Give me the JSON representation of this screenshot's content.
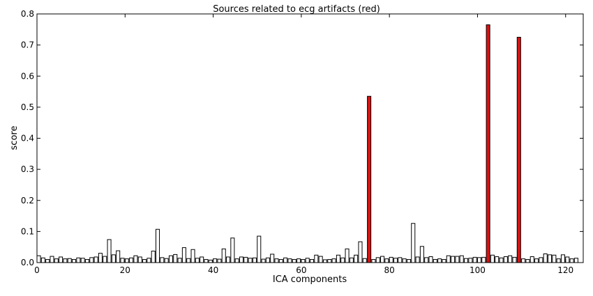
{
  "chart_data": {
    "type": "bar",
    "title": "Sources related to ecg artifacts (red)",
    "xlabel": "ICA components",
    "ylabel": "score",
    "xlim": [
      0,
      124
    ],
    "ylim": [
      0,
      0.8
    ],
    "xticks": [
      0,
      20,
      40,
      60,
      80,
      100,
      120
    ],
    "yticks": [
      0.0,
      0.1,
      0.2,
      0.3,
      0.4,
      0.5,
      0.6,
      0.7,
      0.8
    ],
    "grid": false,
    "colors": {
      "normal": "#ffffff",
      "highlight": "#dd1111",
      "edge": "#000000"
    },
    "highlighted_indices": [
      75,
      102,
      109
    ],
    "values": [
      0.022,
      0.015,
      0.01,
      0.02,
      0.012,
      0.018,
      0.012,
      0.013,
      0.01,
      0.015,
      0.014,
      0.01,
      0.016,
      0.018,
      0.03,
      0.02,
      0.074,
      0.025,
      0.038,
      0.014,
      0.012,
      0.015,
      0.022,
      0.018,
      0.01,
      0.014,
      0.037,
      0.107,
      0.016,
      0.013,
      0.022,
      0.026,
      0.014,
      0.048,
      0.013,
      0.042,
      0.014,
      0.018,
      0.01,
      0.008,
      0.012,
      0.011,
      0.044,
      0.018,
      0.079,
      0.012,
      0.018,
      0.017,
      0.014,
      0.015,
      0.085,
      0.011,
      0.015,
      0.027,
      0.012,
      0.01,
      0.015,
      0.012,
      0.01,
      0.012,
      0.01,
      0.014,
      0.01,
      0.024,
      0.02,
      0.009,
      0.01,
      0.012,
      0.024,
      0.015,
      0.044,
      0.015,
      0.024,
      0.067,
      0.013,
      0.535,
      0.01,
      0.016,
      0.02,
      0.012,
      0.017,
      0.014,
      0.016,
      0.012,
      0.01,
      0.126,
      0.018,
      0.052,
      0.016,
      0.019,
      0.01,
      0.012,
      0.01,
      0.022,
      0.02,
      0.02,
      0.022,
      0.013,
      0.014,
      0.017,
      0.016,
      0.017,
      0.765,
      0.024,
      0.019,
      0.015,
      0.019,
      0.022,
      0.017,
      0.725,
      0.012,
      0.01,
      0.019,
      0.012,
      0.016,
      0.028,
      0.025,
      0.024,
      0.012,
      0.025,
      0.018,
      0.012,
      0.014
    ]
  }
}
